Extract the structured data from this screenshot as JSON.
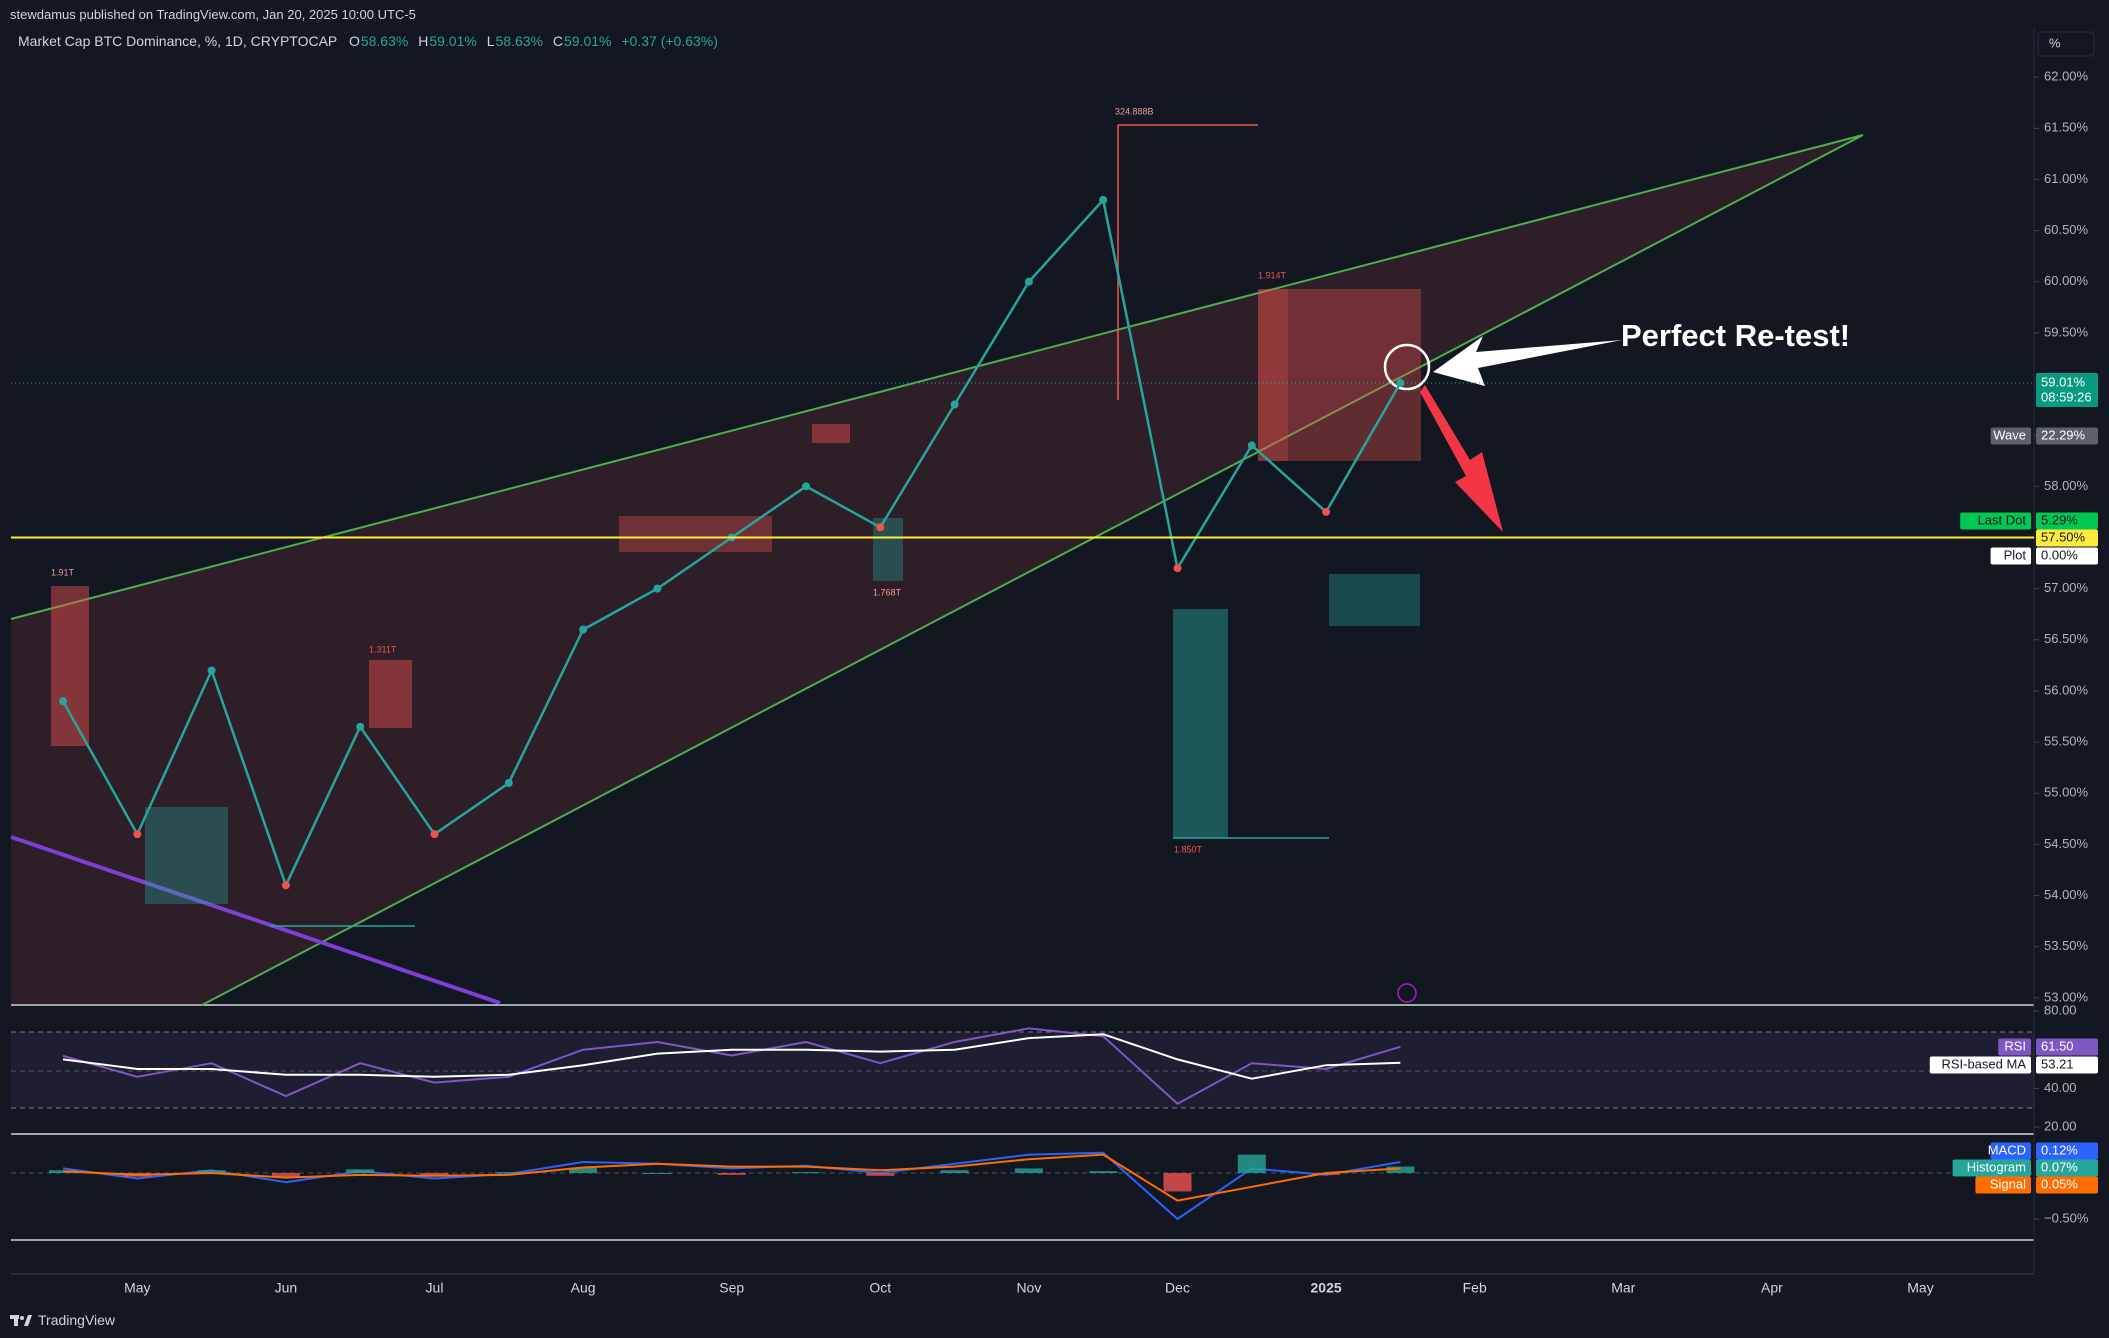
{
  "header": {
    "publisher": "stewdamus published on TradingView.com, Jan 20, 2025 10:00 UTC-5"
  },
  "chart_data": [
    {
      "type": "line",
      "title": "Market Cap BTC Dominance, %, 1D, CRYPTOCAP",
      "legend_items": [
        {
          "key": "O",
          "value": "58.63%"
        },
        {
          "key": "H",
          "value": "59.01%"
        },
        {
          "key": "L",
          "value": "58.63%"
        },
        {
          "key": "C",
          "value": "59.01%"
        }
      ],
      "change": "+0.37 (+0.63%)",
      "unit_button": "%",
      "categories": [
        null,
        "May",
        null,
        "Jun",
        null,
        "Jul",
        null,
        "Aug",
        null,
        "Sep",
        null,
        "Oct",
        null,
        "Nov",
        null,
        "Dec",
        null,
        "2025",
        null,
        "Feb",
        null,
        "Mar",
        null,
        "Apr",
        null,
        "May"
      ],
      "values": [
        55.9,
        54.6,
        56.2,
        54.1,
        55.65,
        54.6,
        55.1,
        56.6,
        57.0,
        57.5,
        58.0,
        57.6,
        58.8,
        60.0,
        60.8,
        57.2,
        58.4,
        57.75,
        59.01,
        null,
        null,
        null,
        null,
        null,
        null,
        null
      ],
      "color": "#26a69a",
      "ylim": [
        52.93,
        62.49
      ],
      "yticks": [
        {
          "value": 53,
          "label": "53.00%"
        },
        {
          "value": 53.5,
          "label": "53.50%"
        },
        {
          "value": 54,
          "label": "54.00%"
        },
        {
          "value": 54.5,
          "label": "54.50%"
        },
        {
          "value": 55,
          "label": "55.00%"
        },
        {
          "value": 55.5,
          "label": "55.50%"
        },
        {
          "value": 56,
          "label": "56.00%"
        },
        {
          "value": 56.5,
          "label": "56.50%"
        },
        {
          "value": 57,
          "label": "57.00%"
        },
        {
          "value": 57.5,
          "label": "57.50%"
        },
        {
          "value": 58,
          "label": "58.00%"
        },
        {
          "value": 58.5,
          "label": "58.50%"
        },
        {
          "value": 59,
          "label": "59.00%"
        },
        {
          "value": 59.5,
          "label": "59.50%"
        },
        {
          "value": 60,
          "label": "60.00%"
        },
        {
          "value": 60.5,
          "label": "60.50%"
        },
        {
          "value": 61,
          "label": "61.00%"
        },
        {
          "value": 61.5,
          "label": "61.50%"
        },
        {
          "value": 62,
          "label": "62.00%"
        }
      ],
      "level": {
        "value": 57.5,
        "label": "57.50%",
        "color": "#ffeb3b"
      },
      "price_tags": [
        {
          "label": "59.01%",
          "time": "08:59:26"
        },
        {
          "name": "Wave",
          "label": "22.29%"
        },
        {
          "name": "Last Dot",
          "label": "5.29%"
        },
        {
          "name": "Plot",
          "label": "0.00%"
        }
      ],
      "volume_labels": [
        "324.888B",
        "1.914T",
        "1.91T",
        "1.311T",
        "1.768T",
        "1.850T"
      ],
      "annotation": "Perfect Re-test!"
    },
    {
      "type": "line",
      "series": [
        {
          "name": "RSI",
          "color": "#7e57c2",
          "last_label": "61.50",
          "values": [
            56.8,
            46,
            53,
            36,
            53,
            43,
            46,
            60,
            64,
            57,
            64,
            53,
            64,
            71,
            67,
            32,
            53,
            50,
            61.5,
            null,
            null,
            null,
            null,
            null,
            null,
            null
          ]
        },
        {
          "name": "RSI-based MA",
          "color": "#ffffff",
          "last_label": "53.21",
          "values": [
            55,
            50,
            50,
            47,
            47,
            46,
            47,
            52,
            58,
            60,
            60,
            59,
            60,
            66,
            68,
            55,
            45,
            52,
            53.21,
            null,
            null,
            null,
            null,
            null,
            null,
            null
          ]
        }
      ],
      "ylim": [
        16.4,
        82.6
      ],
      "yticks": [
        {
          "value": 20,
          "label": "20.00"
        },
        {
          "value": 40,
          "label": "40.00"
        },
        {
          "value": 80,
          "label": "80.00"
        }
      ]
    },
    {
      "type": "macd",
      "series": [
        {
          "name": "MACD",
          "color": "#2962ff",
          "last_label": "0.12%",
          "values": [
            0.05,
            -0.06,
            0.03,
            -0.1,
            0.02,
            -0.06,
            -0.01,
            0.12,
            0.1,
            0.05,
            0.08,
            0.0,
            0.1,
            0.2,
            0.22,
            -0.5,
            0.05,
            -0.02,
            0.12,
            null,
            null,
            null,
            null,
            null,
            null,
            null
          ]
        },
        {
          "name": "Histogram",
          "color": "#26a69a",
          "last_label": "0.07%",
          "values": [
            0.03,
            -0.04,
            0.03,
            -0.05,
            0.04,
            -0.03,
            0.01,
            0.06,
            0.0,
            -0.02,
            0.01,
            -0.03,
            0.03,
            0.05,
            0.02,
            -0.2,
            0.2,
            -0.02,
            0.07,
            null,
            null,
            null,
            null,
            null,
            null,
            null
          ]
        },
        {
          "name": "Signal",
          "color": "#ff6d00",
          "last_label": "0.05%",
          "values": [
            0.02,
            -0.02,
            0.0,
            -0.05,
            -0.02,
            -0.03,
            -0.02,
            0.06,
            0.1,
            0.07,
            0.07,
            0.03,
            0.07,
            0.15,
            0.2,
            -0.3,
            -0.15,
            0.0,
            0.05,
            null,
            null,
            null,
            null,
            null,
            null,
            null
          ]
        }
      ],
      "negative_color": "#ef5350",
      "ylim": [
        -0.728,
        0.424
      ],
      "yticks": [
        {
          "value": -0.5,
          "label": "−0.50%"
        }
      ]
    }
  ],
  "footer": {
    "brand": "TradingView"
  }
}
